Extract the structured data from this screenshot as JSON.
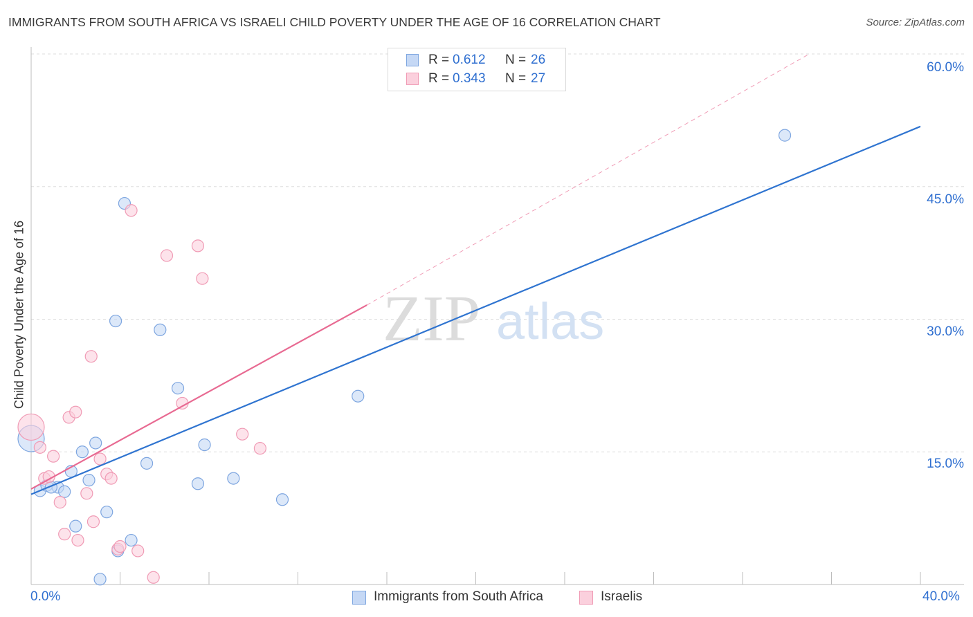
{
  "title": "IMMIGRANTS FROM SOUTH AFRICA VS ISRAELI CHILD POVERTY UNDER THE AGE OF 16 CORRELATION CHART",
  "source": "Source: ZipAtlas.com",
  "watermark": {
    "zip": "ZIP",
    "atlas": "atlas"
  },
  "legend": {
    "rows": [
      {
        "label": "R = ",
        "r": "0.612",
        "n_label": "N = ",
        "n": "26"
      },
      {
        "label": "R = ",
        "r": "0.343",
        "n_label": "N = ",
        "n": "27"
      }
    ]
  },
  "colors": {
    "blue_fill": "#c5d8f5",
    "blue_stroke": "#7ea6e0",
    "blue_line": "#2f74d0",
    "pink_fill": "#fbd0dd",
    "pink_stroke": "#f09bb5",
    "pink_line": "#e86a92",
    "grid": "#dddddd",
    "accent_text": "#2f6fd0"
  },
  "chart_data": {
    "type": "scatter",
    "title": "IMMIGRANTS FROM SOUTH AFRICA VS ISRAELI CHILD POVERTY UNDER THE AGE OF 16 CORRELATION CHART",
    "xlabel": "",
    "ylabel": "Child Poverty Under the Age of 16",
    "xlim": [
      0,
      40
    ],
    "ylim": [
      0,
      60
    ],
    "x_tick_labels": [
      "0.0%",
      "40.0%"
    ],
    "y_ticks": [
      15,
      30,
      45,
      60
    ],
    "y_tick_labels": [
      "15.0%",
      "30.0%",
      "45.0%",
      "60.0%"
    ],
    "grid": true,
    "legend_position": "top-center",
    "series": [
      {
        "name": "Immigrants from South Africa",
        "color": "blue",
        "R": 0.612,
        "N": 26,
        "points": [
          [
            0.0,
            16.5
          ],
          [
            0.4,
            10.6
          ],
          [
            0.7,
            11.2
          ],
          [
            1.2,
            11.0
          ],
          [
            1.5,
            10.5
          ],
          [
            1.8,
            12.8
          ],
          [
            2.0,
            6.6
          ],
          [
            2.3,
            15.0
          ],
          [
            2.6,
            11.8
          ],
          [
            2.9,
            16.0
          ],
          [
            3.1,
            0.6
          ],
          [
            3.4,
            8.2
          ],
          [
            3.8,
            29.8
          ],
          [
            3.9,
            3.8
          ],
          [
            4.2,
            43.1
          ],
          [
            4.5,
            5.0
          ],
          [
            5.2,
            13.7
          ],
          [
            5.8,
            28.8
          ],
          [
            6.6,
            22.2
          ],
          [
            7.5,
            11.4
          ],
          [
            7.8,
            15.8
          ],
          [
            9.1,
            12.0
          ],
          [
            11.3,
            9.6
          ],
          [
            14.7,
            21.3
          ],
          [
            33.9,
            50.8
          ],
          [
            0.9,
            11.0
          ]
        ],
        "trend": {
          "x0": 0.0,
          "y0": 10.2,
          "x1": 40.0,
          "y1": 51.8
        }
      },
      {
        "name": "Israelis",
        "color": "pink",
        "R": 0.343,
        "N": 27,
        "points": [
          [
            0.0,
            17.8
          ],
          [
            0.4,
            15.5
          ],
          [
            0.6,
            12.0
          ],
          [
            0.8,
            12.2
          ],
          [
            1.0,
            14.5
          ],
          [
            1.3,
            9.3
          ],
          [
            1.5,
            5.7
          ],
          [
            1.7,
            18.9
          ],
          [
            2.0,
            19.5
          ],
          [
            2.1,
            5.0
          ],
          [
            2.5,
            10.3
          ],
          [
            2.7,
            25.8
          ],
          [
            2.8,
            7.1
          ],
          [
            3.1,
            14.2
          ],
          [
            3.4,
            12.5
          ],
          [
            3.6,
            12.0
          ],
          [
            3.9,
            4.0
          ],
          [
            4.0,
            4.3
          ],
          [
            4.5,
            42.3
          ],
          [
            4.8,
            3.8
          ],
          [
            5.5,
            0.8
          ],
          [
            6.1,
            37.2
          ],
          [
            6.8,
            20.5
          ],
          [
            7.5,
            38.3
          ],
          [
            7.7,
            34.6
          ],
          [
            9.5,
            17.0
          ],
          [
            10.3,
            15.4
          ]
        ],
        "trend": {
          "x0": 0.0,
          "y0": 10.8,
          "x1": 15.1,
          "y1": 31.6
        },
        "trend_extension": {
          "x0": 15.1,
          "y0": 31.6,
          "x1": 35.0,
          "y1": 60.0
        }
      }
    ]
  },
  "bottom_legend": [
    {
      "label": "Immigrants from South Africa"
    },
    {
      "label": "Israelis"
    }
  ]
}
